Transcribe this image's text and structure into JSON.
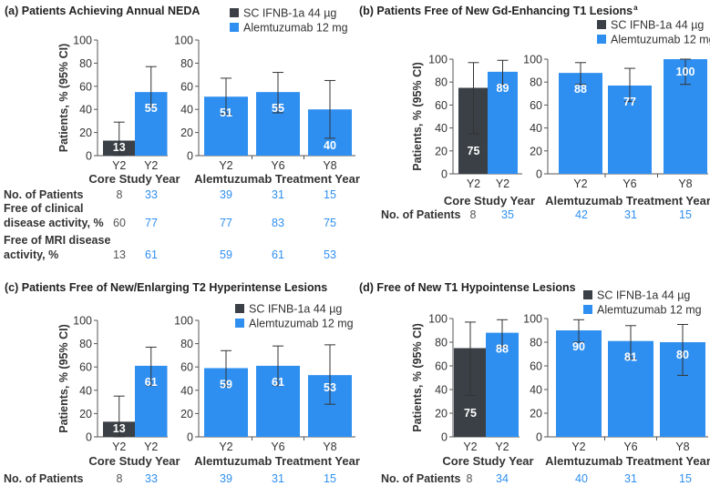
{
  "colors": {
    "ifnb": "#3a4045",
    "alem": "#2f8ff0",
    "axis": "#555555",
    "ci": "#333333",
    "cell_first": "#555555"
  },
  "chart_data": [
    {
      "type": "bar",
      "id": "a",
      "title": "(a) Patients Achieving Annual NEDA",
      "superscript": "",
      "legend": [
        "SC IFNB-1a 44 µg",
        "Alemtuzumab 12 mg"
      ],
      "ylabel": "Patients, % (95% CI)",
      "ylim": [
        0,
        100
      ],
      "yticks": [
        "0",
        "20",
        "40",
        "60",
        "80",
        "100"
      ],
      "groups": [
        {
          "label": "Core Study Year",
          "categories": [
            "Y2",
            "Y2"
          ],
          "series": [
            "ifnb",
            "alem"
          ],
          "values": [
            13,
            55
          ],
          "ci": [
            [
              0,
              29
            ],
            [
              42,
              77
            ]
          ]
        },
        {
          "label": "Alemtuzumab Treatment Year",
          "categories": [
            "Y2",
            "Y6",
            "Y8"
          ],
          "series": [
            "alem",
            "alem",
            "alem"
          ],
          "values": [
            51,
            55,
            40
          ],
          "ci": [
            [
              36,
              67
            ],
            [
              37,
              72
            ],
            [
              15,
              65
            ]
          ]
        }
      ],
      "table": [
        {
          "label": [
            "No. of Patients"
          ],
          "values": [
            "8",
            "33",
            "39",
            "31",
            "15"
          ]
        },
        {
          "label": [
            "Free of clinical",
            "disease activity, %"
          ],
          "values": [
            "60",
            "77",
            "77",
            "83",
            "75"
          ]
        },
        {
          "label": [
            "Free of MRI disease",
            "activity, %"
          ],
          "values": [
            "13",
            "61",
            "59",
            "61",
            "53"
          ]
        }
      ]
    },
    {
      "type": "bar",
      "id": "b",
      "title": "(b) Patients Free of New Gd-Enhancing T1 Lesions",
      "superscript": "a",
      "legend": [
        "SC IFNB-1a 44 µg",
        "Alemtuzumab 12 mg"
      ],
      "ylabel": "Patients, % (95% CI)",
      "ylim": [
        0,
        100
      ],
      "yticks": [
        "0",
        "20",
        "40",
        "60",
        "80",
        "100"
      ],
      "groups": [
        {
          "label": "Core Study Year",
          "categories": [
            "Y2",
            "Y2"
          ],
          "series": [
            "ifnb",
            "alem"
          ],
          "values": [
            75,
            89
          ],
          "ci": [
            [
              35,
              97
            ],
            [
              78,
              99
            ]
          ]
        },
        {
          "label": "Alemtuzumab Treatment Year",
          "categories": [
            "Y2",
            "Y6",
            "Y8"
          ],
          "series": [
            "alem",
            "alem",
            "alem"
          ],
          "values": [
            88,
            77,
            100
          ],
          "ci": [
            [
              78,
              97
            ],
            [
              63,
              92
            ],
            [
              78,
              100
            ]
          ]
        }
      ],
      "table": [
        {
          "label": [
            "No. of Patients"
          ],
          "values": [
            "8",
            "35",
            "42",
            "31",
            "15"
          ]
        }
      ]
    },
    {
      "type": "bar",
      "id": "c",
      "title": "(c) Patients Free of New/Enlarging T2 Hyperintense Lesions",
      "superscript": "",
      "legend": [
        "SC IFNB-1a 44 µg",
        "Alemtuzumab 12 mg"
      ],
      "ylabel": "Patients, % (95% CI)",
      "ylim": [
        0,
        100
      ],
      "yticks": [
        "0",
        "20",
        "40",
        "60",
        "80",
        "100"
      ],
      "groups": [
        {
          "label": "Core Study Year",
          "categories": [
            "Y2",
            "Y2"
          ],
          "series": [
            "ifnb",
            "alem"
          ],
          "values": [
            13,
            61
          ],
          "ci": [
            [
              0,
              35
            ],
            [
              44,
              77
            ]
          ]
        },
        {
          "label": "Alemtuzumab Treatment Year",
          "categories": [
            "Y2",
            "Y6",
            "Y8"
          ],
          "series": [
            "alem",
            "alem",
            "alem"
          ],
          "values": [
            59,
            61,
            53
          ],
          "ci": [
            [
              43,
              74
            ],
            [
              44,
              78
            ],
            [
              28,
              79
            ]
          ]
        }
      ],
      "table": [
        {
          "label": [
            "No. of Patients"
          ],
          "values": [
            "8",
            "33",
            "39",
            "31",
            "15"
          ]
        }
      ]
    },
    {
      "type": "bar",
      "id": "d",
      "title": "(d) Free of New T1 Hypointense Lesions",
      "superscript": "",
      "legend": [
        "SC IFNB-1a 44 µg",
        "Alemtuzumab 12 mg"
      ],
      "ylabel": "Patients, % (95% CI)",
      "ylim": [
        0,
        100
      ],
      "yticks": [
        "0",
        "20",
        "40",
        "60",
        "80",
        "100"
      ],
      "groups": [
        {
          "label": "Core Study Year",
          "categories": [
            "Y2",
            "Y2"
          ],
          "series": [
            "ifnb",
            "alem"
          ],
          "values": [
            75,
            88
          ],
          "ci": [
            [
              35,
              97
            ],
            [
              76,
              99
            ]
          ]
        },
        {
          "label": "Alemtuzumab Treatment Year",
          "categories": [
            "Y2",
            "Y6",
            "Y8"
          ],
          "series": [
            "alem",
            "alem",
            "alem"
          ],
          "values": [
            90,
            81,
            80
          ],
          "ci": [
            [
              80,
              99
            ],
            [
              66,
              94
            ],
            [
              52,
              95
            ]
          ]
        }
      ],
      "table": [
        {
          "label": [
            "No. of Patients"
          ],
          "values": [
            "8",
            "34",
            "40",
            "31",
            "15"
          ]
        }
      ]
    }
  ]
}
